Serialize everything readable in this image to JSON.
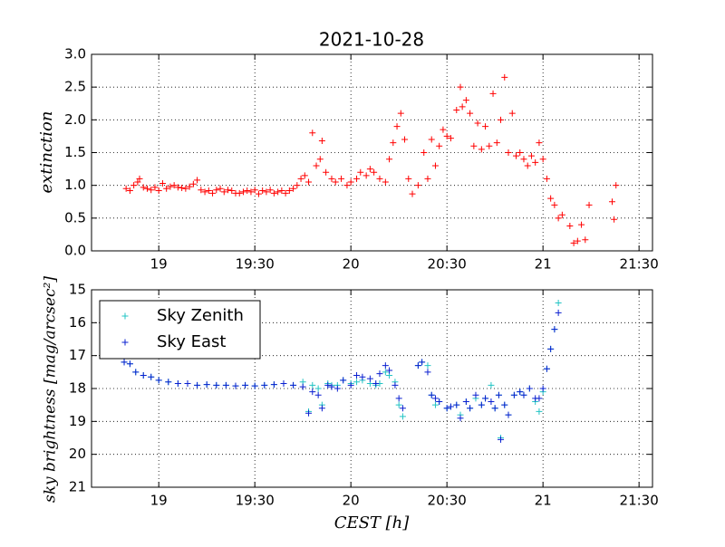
{
  "chart_data": [
    {
      "type": "scatter",
      "title": "2021-10-28",
      "y_label": "extinction",
      "color": "#ff0000",
      "grid": true,
      "xlim": [
        18.65,
        21.57
      ],
      "xticks": [
        19,
        {
          "value": 19.5,
          "label": "19:30"
        },
        20,
        {
          "value": 20.5,
          "label": "20:30"
        },
        21,
        {
          "value": 21.5,
          "label": "21:30"
        }
      ],
      "ylim": [
        0,
        3
      ],
      "yticks": [
        {
          "value": 0,
          "label": "0.0"
        },
        0.5,
        {
          "value": 1,
          "label": "1.0"
        },
        1.5,
        {
          "value": 2,
          "label": "2.0"
        },
        2.5,
        {
          "value": 3,
          "label": "3.0"
        }
      ],
      "x": [
        18.83,
        18.85,
        18.87,
        18.89,
        18.9,
        18.92,
        18.94,
        18.96,
        18.98,
        19.0,
        19.02,
        19.04,
        19.06,
        19.08,
        19.1,
        19.12,
        19.14,
        19.16,
        19.18,
        19.2,
        19.22,
        19.24,
        19.26,
        19.28,
        19.3,
        19.32,
        19.34,
        19.36,
        19.38,
        19.4,
        19.42,
        19.44,
        19.46,
        19.48,
        19.5,
        19.52,
        19.54,
        19.56,
        19.58,
        19.6,
        19.62,
        19.64,
        19.66,
        19.68,
        19.7,
        19.72,
        19.74,
        19.76,
        19.78,
        19.8,
        19.82,
        19.84,
        19.85,
        19.87,
        19.9,
        19.92,
        19.95,
        19.98,
        20.0,
        20.03,
        20.05,
        20.08,
        20.1,
        20.12,
        20.15,
        20.18,
        20.2,
        20.22,
        20.24,
        20.26,
        20.28,
        20.3,
        20.32,
        20.35,
        20.38,
        20.4,
        20.42,
        20.44,
        20.46,
        20.48,
        20.5,
        20.52,
        20.55,
        20.57,
        20.58,
        20.6,
        20.62,
        20.64,
        20.66,
        20.68,
        20.7,
        20.72,
        20.74,
        20.76,
        20.78,
        20.8,
        20.82,
        20.84,
        20.86,
        20.88,
        20.9,
        20.92,
        20.94,
        20.96,
        20.98,
        21.0,
        21.02,
        21.04,
        21.06,
        21.08,
        21.1,
        21.14,
        21.16,
        21.18,
        21.2,
        21.22,
        21.24,
        21.36,
        21.37,
        21.38
      ],
      "values": [
        0.95,
        0.92,
        1.0,
        1.05,
        1.1,
        0.97,
        0.95,
        0.93,
        0.97,
        0.92,
        1.03,
        0.95,
        0.98,
        1.0,
        0.97,
        0.96,
        0.95,
        0.98,
        1.02,
        1.08,
        0.93,
        0.9,
        0.92,
        0.88,
        0.93,
        0.95,
        0.9,
        0.93,
        0.92,
        0.88,
        0.88,
        0.9,
        0.92,
        0.9,
        0.93,
        0.87,
        0.92,
        0.9,
        0.93,
        0.88,
        0.9,
        0.92,
        0.88,
        0.92,
        0.95,
        1.0,
        1.1,
        1.15,
        1.05,
        1.8,
        1.3,
        1.4,
        1.68,
        1.2,
        1.1,
        1.05,
        1.1,
        1.0,
        1.05,
        1.1,
        1.2,
        1.15,
        1.25,
        1.2,
        1.1,
        1.05,
        1.4,
        1.65,
        1.9,
        2.1,
        1.7,
        1.1,
        0.87,
        1.0,
        1.5,
        1.1,
        1.7,
        1.3,
        1.6,
        1.85,
        1.75,
        1.72,
        2.15,
        2.5,
        2.2,
        2.3,
        2.1,
        1.6,
        1.95,
        1.55,
        1.9,
        1.6,
        2.4,
        1.65,
        2.0,
        2.65,
        1.5,
        2.1,
        1.45,
        1.5,
        1.4,
        1.3,
        1.45,
        1.35,
        1.65,
        1.4,
        1.1,
        0.8,
        0.7,
        0.5,
        0.55,
        0.38,
        0.12,
        0.15,
        0.4,
        0.17,
        0.7,
        0.75,
        0.48,
        1.0
      ]
    },
    {
      "type": "scatter",
      "x_label": "CEST [h]",
      "y_label": "sky brightness [mag/arcsec²]",
      "grid": true,
      "legend": "upper left",
      "xlim": [
        18.65,
        21.57
      ],
      "xticks": [
        19,
        {
          "value": 19.5,
          "label": "19:30"
        },
        20,
        {
          "value": 20.5,
          "label": "20:30"
        },
        21,
        {
          "value": 21.5,
          "label": "21:30"
        }
      ],
      "ylim": [
        21,
        15
      ],
      "yticks": [
        15,
        16,
        17,
        18,
        19,
        20,
        21
      ],
      "x": [
        18.82,
        18.85,
        18.88,
        18.92,
        18.96,
        19.0,
        19.05,
        19.1,
        19.15,
        19.2,
        19.25,
        19.3,
        19.35,
        19.4,
        19.45,
        19.5,
        19.55,
        19.6,
        19.65,
        19.7,
        19.75,
        19.78,
        19.8,
        19.83,
        19.85,
        19.88,
        19.9,
        19.93,
        19.96,
        20.0,
        20.03,
        20.06,
        20.1,
        20.13,
        20.15,
        20.18,
        20.2,
        20.23,
        20.25,
        20.27,
        20.35,
        20.37,
        20.4,
        20.42,
        20.44,
        20.46,
        20.5,
        20.52,
        20.55,
        20.57,
        20.6,
        20.62,
        20.65,
        20.68,
        20.7,
        20.73,
        20.75,
        20.77,
        20.78,
        20.8,
        20.82,
        20.85,
        20.88,
        20.9,
        20.93,
        20.96,
        20.98,
        21.0,
        21.02,
        21.04,
        21.06,
        21.08
      ],
      "series": [
        {
          "name": "Sky Zenith",
          "color": "#22c4c4",
          "values": [
            17.2,
            17.25,
            17.5,
            17.6,
            17.65,
            17.75,
            17.8,
            17.85,
            17.85,
            17.9,
            17.88,
            17.9,
            17.9,
            17.92,
            17.9,
            17.92,
            17.9,
            17.88,
            17.85,
            17.9,
            17.8,
            18.7,
            17.9,
            18.0,
            18.5,
            17.85,
            17.9,
            17.9,
            17.75,
            17.85,
            17.8,
            17.75,
            17.85,
            17.9,
            17.85,
            17.5,
            17.6,
            17.8,
            18.5,
            18.85,
            17.3,
            17.2,
            17.3,
            18.2,
            18.5,
            18.4,
            18.6,
            18.55,
            18.5,
            18.8,
            18.4,
            18.6,
            18.3,
            18.5,
            18.3,
            17.9,
            18.6,
            18.2,
            19.5,
            18.5,
            18.8,
            18.2,
            18.1,
            18.2,
            18.0,
            18.4,
            18.7,
            18.1,
            17.4,
            16.8,
            16.2,
            15.4
          ]
        },
        {
          "name": "Sky East",
          "color": "#0a1fd0",
          "values": [
            17.2,
            17.25,
            17.5,
            17.6,
            17.65,
            17.75,
            17.8,
            17.85,
            17.85,
            17.9,
            17.88,
            17.9,
            17.9,
            17.92,
            17.9,
            17.92,
            17.9,
            17.88,
            17.85,
            17.9,
            17.95,
            18.75,
            18.1,
            18.2,
            18.6,
            17.9,
            17.95,
            18.0,
            17.75,
            17.9,
            17.6,
            17.65,
            17.7,
            17.85,
            17.55,
            17.3,
            17.45,
            17.9,
            18.3,
            18.6,
            17.3,
            17.2,
            17.5,
            18.2,
            18.3,
            18.4,
            18.6,
            18.55,
            18.5,
            18.9,
            18.4,
            18.6,
            18.2,
            18.5,
            18.3,
            18.4,
            18.6,
            18.2,
            19.55,
            18.5,
            18.8,
            18.2,
            18.1,
            18.2,
            18.0,
            18.3,
            18.3,
            18.0,
            17.4,
            16.8,
            16.2,
            15.7
          ]
        }
      ]
    }
  ]
}
